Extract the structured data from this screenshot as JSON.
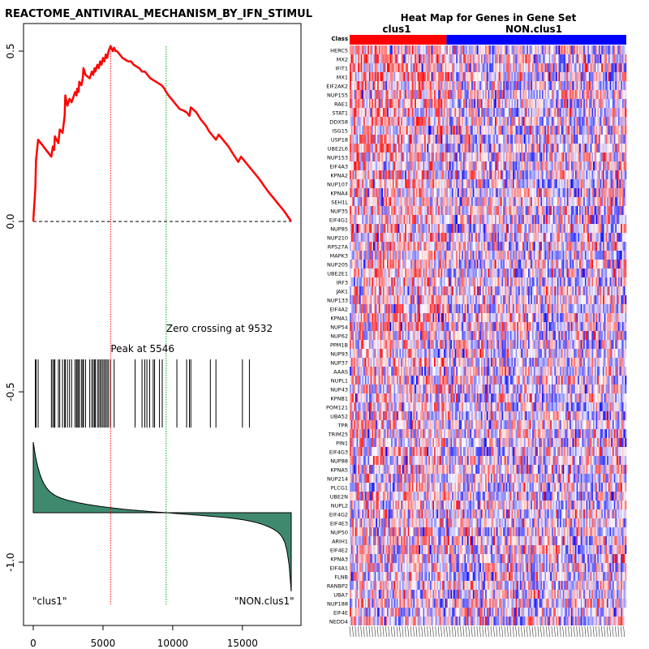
{
  "chart_data": [
    {
      "type": "line",
      "title": "REACTOME_ANTIVIRAL_MECHANISM_BY_IFN_STIMUL",
      "xlim": [
        0,
        18500
      ],
      "ylim": [
        -1.15,
        0.6
      ],
      "x_ticks": [
        0,
        5000,
        10000,
        15000
      ],
      "y_ticks": [
        0.5,
        0.0,
        -0.5,
        -1.0
      ],
      "x_tick_labels": [
        "0",
        "5000",
        "10000",
        "15000"
      ],
      "y_tick_labels": [
        "0.5",
        "0.0",
        "-0.5",
        "-1.0"
      ],
      "running_es": {
        "x": [
          0,
          150,
          200,
          350,
          1300,
          1400,
          1500,
          1550,
          1800,
          1900,
          2100,
          2250,
          2300,
          2450,
          2600,
          2750,
          3000,
          3100,
          3150,
          3250,
          3300,
          3450,
          3550,
          3600,
          3750,
          4050,
          4200,
          4300,
          4400,
          4450,
          4600,
          4700,
          4800,
          4900,
          5000,
          5100,
          5200,
          5300,
          5400,
          5546,
          5700,
          5800,
          5900,
          6000,
          6200,
          6400,
          6600,
          6800,
          7000,
          7200,
          7400,
          7600,
          7800,
          8000,
          8200,
          8400,
          8600,
          8800,
          9000,
          9200,
          9400,
          9532,
          9700,
          9900,
          10100,
          10300,
          10500,
          10800,
          11000,
          11200,
          11300,
          11700,
          12000,
          12200,
          12400,
          12600,
          12900,
          13100,
          13300,
          13700,
          14000,
          14300,
          14700,
          14900,
          15100,
          15600,
          16200,
          16800,
          17400,
          18000,
          18500
        ],
        "y": [
          0,
          0.1,
          0.18,
          0.24,
          0.19,
          0.22,
          0.21,
          0.25,
          0.23,
          0.27,
          0.26,
          0.31,
          0.37,
          0.34,
          0.36,
          0.35,
          0.38,
          0.37,
          0.39,
          0.38,
          0.41,
          0.4,
          0.42,
          0.45,
          0.43,
          0.42,
          0.44,
          0.43,
          0.45,
          0.44,
          0.46,
          0.45,
          0.47,
          0.46,
          0.48,
          0.47,
          0.49,
          0.48,
          0.5,
          0.515,
          0.5,
          0.51,
          0.5,
          0.5,
          0.49,
          0.48,
          0.475,
          0.47,
          0.47,
          0.46,
          0.455,
          0.45,
          0.44,
          0.44,
          0.43,
          0.42,
          0.415,
          0.41,
          0.405,
          0.4,
          0.39,
          0.38,
          0.37,
          0.36,
          0.35,
          0.34,
          0.33,
          0.325,
          0.32,
          0.31,
          0.335,
          0.32,
          0.3,
          0.29,
          0.28,
          0.265,
          0.25,
          0.24,
          0.255,
          0.235,
          0.22,
          0.2,
          0.175,
          0.19,
          0.18,
          0.155,
          0.125,
          0.09,
          0.06,
          0.03,
          0
        ]
      },
      "hit_positions": [
        150,
        200,
        350,
        1300,
        1400,
        1500,
        1550,
        1800,
        1900,
        2100,
        2250,
        2300,
        2450,
        2600,
        2750,
        3000,
        3100,
        3150,
        3250,
        3300,
        3450,
        3550,
        3600,
        3750,
        4050,
        4200,
        4300,
        4400,
        4450,
        4600,
        4700,
        4800,
        4900,
        5000,
        5100,
        5200,
        5300,
        5400,
        5546,
        5800,
        7300,
        7800,
        8000,
        8150,
        8350,
        8600,
        8700,
        9050,
        9250,
        10300,
        11000,
        11200,
        11300,
        12700,
        13100,
        15000,
        15500
      ],
      "annotations": {
        "peak": {
          "label": "Peak at 5546",
          "x": 5546
        },
        "zero_crossing": {
          "label": "Zero crossing at 9532",
          "x": 9532
        },
        "left_class": "\"clus1\"",
        "right_class": "\"NON.clus1\""
      },
      "colors": {
        "es_line": "#ff0000",
        "peak_line": "#ff0000",
        "zero_line": "#00aa00",
        "metric_fill": "#3f8a6e"
      }
    },
    {
      "type": "heatmap",
      "title": "Heat Map for Genes in Gene Set",
      "class_label": "Class",
      "classes": [
        {
          "name": "clus1",
          "color": "#ff0000"
        },
        {
          "name": "NON.clus1",
          "color": "#0000ff"
        }
      ],
      "genes": [
        "HERC5",
        "MX2",
        "IFIT1",
        "MX1",
        "EIF2AK2",
        "NUP155",
        "RAE1",
        "STAT1",
        "DDX58",
        "ISG15",
        "USP18",
        "UBE2L6",
        "NUP153",
        "EIF4A3",
        "KPNA2",
        "NUP107",
        "KPNA4",
        "SEH1L",
        "NUP35",
        "EIF4G1",
        "NUP85",
        "NUP210",
        "RPS27A",
        "MAPK3",
        "NUP205",
        "UBE2E1",
        "IRF3",
        "JAK1",
        "NUP133",
        "EIF4A2",
        "KPNA1",
        "NUP54",
        "NUP62",
        "PPM1B",
        "NUP93",
        "NUP37",
        "AAAS",
        "NUPL1",
        "NUP43",
        "KPNB1",
        "POM121",
        "UBA52",
        "TPR",
        "TRIM25",
        "PIN1",
        "EIF4G3",
        "NUP88",
        "KPNA5",
        "NUP214",
        "PLCG1",
        "UBE2N",
        "NUPL2",
        "EIF4G2",
        "EIF4E3",
        "NUP50",
        "ARIH1",
        "EIF4E2",
        "KPNA3",
        "EIF4A1",
        "FLNB",
        "RANBP2",
        "UBA7",
        "NUP188",
        "EIF4E",
        "NEDD4"
      ],
      "n_samples": 200,
      "n_clus1": 70,
      "value_range": [
        -1,
        1
      ],
      "colormap": [
        "#0000ff",
        "#ffffff",
        "#ff0000"
      ]
    }
  ]
}
